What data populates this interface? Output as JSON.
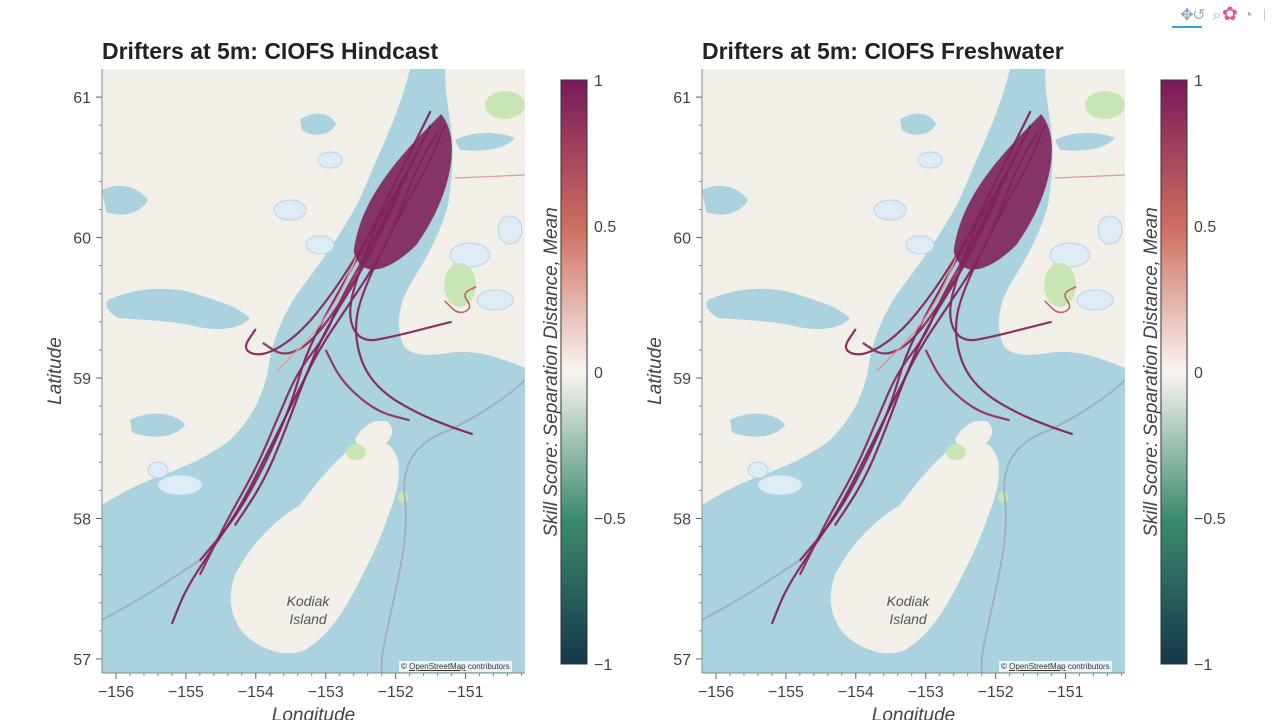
{
  "toolbar": {
    "tools": [
      {
        "name": "pan-tool",
        "glyph": "✥"
      },
      {
        "name": "box-zoom-tool",
        "glyph": "⌕"
      },
      {
        "name": "hover-tool",
        "glyph": "◔"
      },
      {
        "name": "reset-tool",
        "glyph": "↺"
      },
      {
        "name": "bokeh-logo",
        "glyph": "✿"
      }
    ]
  },
  "attribution": {
    "prefix": "©",
    "link": "OpenStreetMap",
    "suffix": "contributors"
  },
  "map_labels": {
    "island_line1": "Kodiak",
    "island_line2": "Island"
  },
  "colors": {
    "water": "#aad3df",
    "land": "#f2efe9",
    "park": "#c8e6b4",
    "glacier": "#ddecf5",
    "track": "#7a1f5a",
    "track_light": "#c86a70"
  },
  "chart_data": [
    {
      "type": "line",
      "title": "Drifters at 5m: CIOFS Hindcast",
      "xlabel": "Longitude",
      "ylabel": "Latitude",
      "xlim": [
        -156.2,
        -150.15
      ],
      "ylim": [
        56.9,
        61.2
      ],
      "xticks": [
        -156,
        -155,
        -154,
        -153,
        -152,
        -151
      ],
      "xtick_labels": [
        "−156",
        "−155",
        "−154",
        "−153",
        "−152",
        "−151"
      ],
      "yticks": [
        57,
        58,
        59,
        60,
        61
      ],
      "ytick_labels": [
        "57",
        "58",
        "59",
        "60",
        "61"
      ],
      "colorbar": {
        "label": "Skill Score: Separation Distance, Mean",
        "min": -1,
        "max": 1,
        "ticks": [
          1,
          0.5,
          0,
          -0.5,
          -1
        ],
        "tick_labels": [
          "1",
          "0.5",
          "0",
          "−0.5",
          "−1"
        ]
      },
      "series": [
        {
          "skill": 0.95,
          "lon": [
            -151.3,
            -151.5,
            -151.9,
            -152.3,
            -152.7,
            -153.1,
            -153.4,
            -153.8,
            -154.2,
            -154.6,
            -155.0,
            -155.2
          ],
          "lat": [
            60.8,
            60.55,
            60.2,
            59.8,
            59.5,
            59.2,
            58.9,
            58.5,
            58.1,
            57.8,
            57.5,
            57.25
          ]
        },
        {
          "skill": 0.95,
          "lon": [
            -151.5,
            -151.8,
            -152.2,
            -152.6,
            -153.0,
            -153.3,
            -153.5,
            -153.9,
            -154.3,
            -154.8
          ],
          "lat": [
            60.9,
            60.6,
            60.2,
            59.8,
            59.45,
            59.15,
            58.8,
            58.35,
            58.0,
            57.7
          ]
        },
        {
          "skill": 0.92,
          "lon": [
            -151.6,
            -151.9,
            -152.4,
            -152.9,
            -153.4,
            -153.9,
            -154.2,
            -154.0
          ],
          "lat": [
            60.7,
            60.4,
            60.0,
            59.6,
            59.3,
            59.15,
            59.2,
            59.35
          ]
        },
        {
          "skill": 0.93,
          "lon": [
            -151.4,
            -151.7,
            -152.0,
            -152.4,
            -152.6,
            -152.5,
            -152.2,
            -151.7,
            -151.2,
            -150.9
          ],
          "lat": [
            60.75,
            60.5,
            60.1,
            59.7,
            59.4,
            59.1,
            58.9,
            58.75,
            58.65,
            58.6
          ]
        },
        {
          "skill": 0.9,
          "lon": [
            -151.7,
            -152.0,
            -152.4,
            -152.8,
            -153.0,
            -153.4,
            -153.7,
            -154.0,
            -154.4,
            -154.8
          ],
          "lat": [
            60.6,
            60.3,
            59.9,
            59.55,
            59.3,
            59.05,
            58.7,
            58.35,
            58.0,
            57.6
          ]
        },
        {
          "skill": 0.94,
          "lon": [
            -151.5,
            -151.8,
            -152.1,
            -152.5,
            -153.0,
            -153.3,
            -153.6,
            -153.9,
            -154.3
          ],
          "lat": [
            60.8,
            60.5,
            60.15,
            59.75,
            59.35,
            59.0,
            58.6,
            58.25,
            57.95
          ]
        },
        {
          "skill": 0.88,
          "lon": [
            -152.0,
            -152.3,
            -152.7,
            -153.2,
            -153.6,
            -153.9
          ],
          "lat": [
            60.3,
            59.95,
            59.6,
            59.25,
            59.15,
            59.25
          ]
        },
        {
          "skill": 0.91,
          "lon": [
            -152.2,
            -152.5,
            -152.7,
            -152.5,
            -152.0,
            -151.6,
            -151.2
          ],
          "lat": [
            60.2,
            59.8,
            59.45,
            59.25,
            59.3,
            59.35,
            59.4
          ]
        },
        {
          "skill": 0.3,
          "lon": [
            -152.4,
            -152.6,
            -152.9,
            -153.2,
            -153.5,
            -153.7
          ],
          "lat": [
            60.1,
            59.8,
            59.5,
            59.3,
            59.15,
            59.05
          ]
        },
        {
          "skill": 0.85,
          "lon": [
            -153.0,
            -152.8,
            -152.5,
            -152.2,
            -151.8
          ],
          "lat": [
            59.2,
            59.0,
            58.85,
            58.75,
            58.7
          ]
        },
        {
          "skill": 0.6,
          "lon": [
            -151.3,
            -151.1,
            -150.9,
            -151.05,
            -150.85
          ],
          "lat": [
            59.55,
            59.45,
            59.5,
            59.6,
            59.65
          ]
        }
      ]
    },
    {
      "type": "line",
      "title": "Drifters at 5m: CIOFS Freshwater",
      "xlabel": "Longitude",
      "ylabel": "Latitude",
      "xlim": [
        -156.2,
        -150.15
      ],
      "ylim": [
        56.9,
        61.2
      ],
      "xticks": [
        -156,
        -155,
        -154,
        -153,
        -152,
        -151
      ],
      "xtick_labels": [
        "−156",
        "−155",
        "−154",
        "−153",
        "−152",
        "−151"
      ],
      "yticks": [
        57,
        58,
        59,
        60,
        61
      ],
      "ytick_labels": [
        "57",
        "58",
        "59",
        "60",
        "61"
      ],
      "colorbar": {
        "label": "Skill Score: Separation Distance, Mean",
        "min": -1,
        "max": 1,
        "ticks": [
          1,
          0.5,
          0,
          -0.5,
          -1
        ],
        "tick_labels": [
          "1",
          "0.5",
          "0",
          "−0.5",
          "−1"
        ]
      },
      "series": [
        {
          "skill": 0.95,
          "lon": [
            -151.3,
            -151.5,
            -151.9,
            -152.3,
            -152.7,
            -153.1,
            -153.4,
            -153.8,
            -154.2,
            -154.6,
            -155.0,
            -155.2
          ],
          "lat": [
            60.8,
            60.55,
            60.2,
            59.8,
            59.5,
            59.2,
            58.9,
            58.5,
            58.1,
            57.8,
            57.5,
            57.25
          ]
        },
        {
          "skill": 0.95,
          "lon": [
            -151.5,
            -151.8,
            -152.2,
            -152.6,
            -153.0,
            -153.3,
            -153.5,
            -153.9,
            -154.3,
            -154.8
          ],
          "lat": [
            60.9,
            60.6,
            60.2,
            59.8,
            59.45,
            59.15,
            58.8,
            58.35,
            58.0,
            57.7
          ]
        },
        {
          "skill": 0.93,
          "lon": [
            -151.6,
            -151.9,
            -152.4,
            -152.9,
            -153.4,
            -153.9,
            -154.2,
            -154.0
          ],
          "lat": [
            60.7,
            60.4,
            60.0,
            59.6,
            59.3,
            59.15,
            59.2,
            59.35
          ]
        },
        {
          "skill": 0.93,
          "lon": [
            -151.4,
            -151.7,
            -152.0,
            -152.4,
            -152.6,
            -152.5,
            -152.2,
            -151.7,
            -151.2,
            -150.9
          ],
          "lat": [
            60.75,
            60.5,
            60.1,
            59.7,
            59.4,
            59.1,
            58.9,
            58.75,
            58.65,
            58.6
          ]
        },
        {
          "skill": 0.9,
          "lon": [
            -151.7,
            -152.0,
            -152.4,
            -152.8,
            -153.0,
            -153.4,
            -153.7,
            -154.0,
            -154.4,
            -154.8
          ],
          "lat": [
            60.6,
            60.3,
            59.9,
            59.55,
            59.3,
            59.05,
            58.7,
            58.35,
            58.0,
            57.6
          ]
        },
        {
          "skill": 0.94,
          "lon": [
            -151.5,
            -151.8,
            -152.1,
            -152.5,
            -153.0,
            -153.3,
            -153.6,
            -153.9,
            -154.3
          ],
          "lat": [
            60.8,
            60.5,
            60.15,
            59.75,
            59.35,
            59.0,
            58.6,
            58.25,
            57.95
          ]
        },
        {
          "skill": 0.9,
          "lon": [
            -152.0,
            -152.3,
            -152.7,
            -153.2,
            -153.6,
            -153.9
          ],
          "lat": [
            60.3,
            59.95,
            59.6,
            59.25,
            59.15,
            59.25
          ]
        },
        {
          "skill": 0.91,
          "lon": [
            -152.2,
            -152.5,
            -152.7,
            -152.5,
            -152.0,
            -151.6,
            -151.2
          ],
          "lat": [
            60.2,
            59.8,
            59.45,
            59.25,
            59.3,
            59.35,
            59.4
          ]
        },
        {
          "skill": 0.35,
          "lon": [
            -152.4,
            -152.6,
            -152.9,
            -153.2,
            -153.5,
            -153.7
          ],
          "lat": [
            60.1,
            59.8,
            59.5,
            59.3,
            59.15,
            59.05
          ]
        },
        {
          "skill": 0.85,
          "lon": [
            -153.0,
            -152.8,
            -152.5,
            -152.2,
            -151.8
          ],
          "lat": [
            59.2,
            59.0,
            58.85,
            58.75,
            58.7
          ]
        },
        {
          "skill": 0.6,
          "lon": [
            -151.3,
            -151.1,
            -150.9,
            -151.05,
            -150.85
          ],
          "lat": [
            59.55,
            59.45,
            59.5,
            59.6,
            59.65
          ]
        }
      ]
    }
  ]
}
